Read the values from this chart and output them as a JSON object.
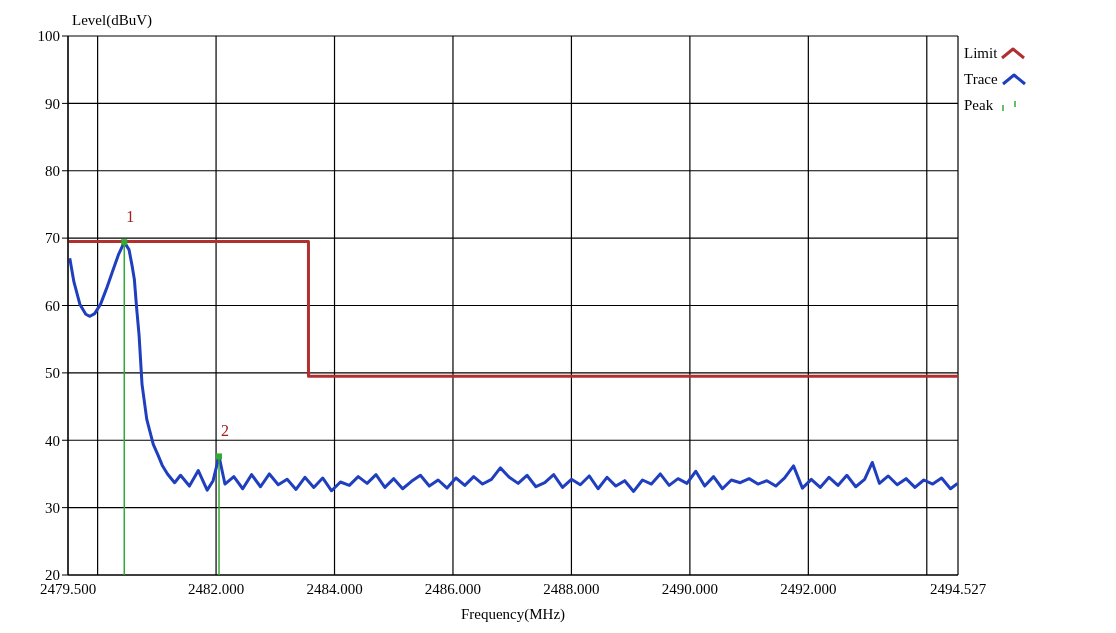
{
  "chart_data": {
    "type": "line",
    "xlabel": "Frequency(MHz)",
    "ylabel": "Level(dBuV)",
    "xlim": [
      2479.5,
      2494.527
    ],
    "xticks": [
      {
        "value": 2479.5,
        "label": "2479.500"
      },
      {
        "value": 2480,
        "label": null
      },
      {
        "value": 2482,
        "label": "2482.000"
      },
      {
        "value": 2484,
        "label": "2484.000"
      },
      {
        "value": 2486,
        "label": "2486.000"
      },
      {
        "value": 2488,
        "label": "2488.000"
      },
      {
        "value": 2490,
        "label": "2490.000"
      },
      {
        "value": 2492,
        "label": "2492.000"
      },
      {
        "value": 2494,
        "label": null
      },
      {
        "value": 2494.527,
        "label": "2494.527"
      }
    ],
    "ylim": [
      20,
      100
    ],
    "yticks": [
      20,
      30,
      40,
      50,
      60,
      70,
      80,
      90,
      100
    ],
    "grid": true,
    "legend": "right",
    "series": [
      {
        "name": "Limit",
        "type": "step",
        "color": "#b03030",
        "x": [
          2479.5,
          2483.56,
          2494.527
        ],
        "values": [
          69.5,
          49.5,
          49.5
        ]
      },
      {
        "name": "Trace",
        "color": "#1f3fbf",
        "x": [
          2479.53,
          2479.6,
          2479.7,
          2479.8,
          2479.87,
          2479.95,
          2480.05,
          2480.15,
          2480.25,
          2480.35,
          2480.45,
          2480.53,
          2480.58,
          2480.62,
          2480.66,
          2480.7,
          2480.75,
          2480.83,
          2480.94,
          2481.02,
          2481.09,
          2481.18,
          2481.3,
          2481.4,
          2481.55,
          2481.7,
          2481.85,
          2481.95,
          2482.05,
          2482.15,
          2482.3,
          2482.45,
          2482.6,
          2482.75,
          2482.9,
          2483.05,
          2483.2,
          2483.35,
          2483.5,
          2483.65,
          2483.8,
          2483.95,
          2484.1,
          2484.25,
          2484.4,
          2484.55,
          2484.7,
          2484.85,
          2485.0,
          2485.15,
          2485.3,
          2485.45,
          2485.6,
          2485.75,
          2485.9,
          2486.05,
          2486.2,
          2486.35,
          2486.5,
          2486.65,
          2486.8,
          2486.95,
          2487.1,
          2487.25,
          2487.4,
          2487.55,
          2487.7,
          2487.85,
          2488.0,
          2488.15,
          2488.3,
          2488.45,
          2488.6,
          2488.75,
          2488.9,
          2489.05,
          2489.2,
          2489.35,
          2489.5,
          2489.65,
          2489.8,
          2489.95,
          2490.1,
          2490.25,
          2490.4,
          2490.55,
          2490.7,
          2490.85,
          2491.0,
          2491.15,
          2491.3,
          2491.45,
          2491.6,
          2491.75,
          2491.9,
          2492.05,
          2492.2,
          2492.35,
          2492.5,
          2492.65,
          2492.8,
          2492.95,
          2493.08,
          2493.2,
          2493.35,
          2493.5,
          2493.65,
          2493.8,
          2493.95,
          2494.1,
          2494.25,
          2494.4,
          2494.52
        ],
        "values": [
          67,
          63.5,
          60.2,
          58.7,
          58.4,
          58.8,
          60.2,
          62.5,
          65,
          67.5,
          69.4,
          68.3,
          66,
          63.9,
          59.5,
          55.6,
          48.3,
          43.1,
          39.4,
          37.8,
          36.3,
          35.0,
          33.7,
          34.8,
          33.2,
          35.5,
          32.6,
          34.0,
          37.6,
          33.5,
          34.6,
          32.8,
          34.9,
          33.1,
          35.0,
          33.4,
          34.2,
          32.7,
          34.5,
          33.0,
          34.4,
          32.5,
          33.8,
          33.3,
          34.6,
          33.6,
          34.9,
          33.0,
          34.3,
          32.8,
          33.9,
          34.8,
          33.2,
          34.1,
          32.9,
          34.4,
          33.3,
          34.6,
          33.5,
          34.2,
          35.9,
          34.5,
          33.6,
          34.8,
          33.1,
          33.7,
          34.9,
          33.0,
          34.2,
          33.4,
          34.7,
          32.8,
          34.5,
          33.2,
          34.0,
          32.4,
          34.1,
          33.5,
          35.0,
          33.3,
          34.3,
          33.6,
          35.4,
          33.2,
          34.6,
          32.8,
          34.1,
          33.7,
          34.3,
          33.5,
          34.0,
          33.2,
          34.4,
          36.2,
          32.9,
          34.2,
          33.0,
          34.5,
          33.3,
          34.8,
          33.1,
          34.2,
          36.7,
          33.6,
          34.7,
          33.4,
          34.3,
          33.0,
          34.1,
          33.5,
          34.4,
          32.8,
          33.6
        ]
      },
      {
        "name": "Peak",
        "type": "lollipop",
        "color": "#33aa33",
        "x": [
          2480.45,
          2482.05
        ],
        "values": [
          69.4,
          37.6
        ]
      }
    ],
    "annotations": [
      {
        "text": "1",
        "x": 2480.45,
        "y": 69.4
      },
      {
        "text": "2",
        "x": 2482.05,
        "y": 37.6
      }
    ]
  }
}
